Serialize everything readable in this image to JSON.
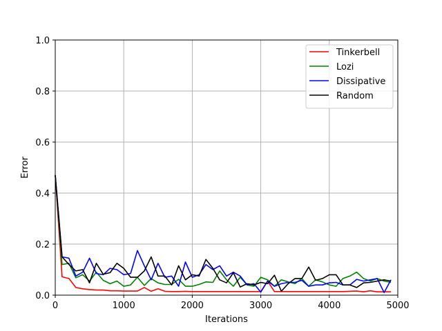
{
  "chart_data": {
    "type": "line",
    "title": "",
    "xlabel": "Iterations",
    "ylabel": "Error",
    "xlim": [
      0,
      5000
    ],
    "ylim": [
      0,
      1.0
    ],
    "xticks": [
      0,
      1000,
      2000,
      3000,
      4000,
      5000
    ],
    "xtick_labels": [
      "0",
      "1000",
      "2000",
      "3000",
      "4000",
      "5000"
    ],
    "yticks": [
      0.0,
      0.2,
      0.4,
      0.6,
      0.8,
      1.0
    ],
    "ytick_labels": [
      "0.0",
      "0.2",
      "0.4",
      "0.6",
      "0.8",
      "1.0"
    ],
    "grid": true,
    "legend_position": "top-right",
    "x": [
      0,
      100,
      200,
      300,
      400,
      500,
      600,
      700,
      800,
      900,
      1000,
      1100,
      1200,
      1300,
      1400,
      1500,
      1600,
      1700,
      1800,
      1900,
      2000,
      2100,
      2200,
      2300,
      2400,
      2500,
      2600,
      2700,
      2800,
      2900,
      3000,
      3100,
      3200,
      3300,
      3400,
      3500,
      3600,
      3700,
      3800,
      3900,
      4000,
      4100,
      4200,
      4300,
      4400,
      4500,
      4600,
      4700,
      4800,
      4900
    ],
    "series": [
      {
        "name": "Tinkerbell",
        "color": "#ff0000",
        "values": [
          0.47,
          0.072,
          0.065,
          0.03,
          0.025,
          0.022,
          0.02,
          0.02,
          0.017,
          0.017,
          0.016,
          0.016,
          0.016,
          0.03,
          0.015,
          0.025,
          0.015,
          0.014,
          0.014,
          0.015,
          0.014,
          0.014,
          0.014,
          0.014,
          0.014,
          0.014,
          0.014,
          0.014,
          0.014,
          0.014,
          0.014,
          0.055,
          0.014,
          0.014,
          0.014,
          0.014,
          0.014,
          0.014,
          0.014,
          0.014,
          0.014,
          0.014,
          0.014,
          0.015,
          0.016,
          0.013,
          0.017,
          0.013,
          0.013,
          0.013
        ]
      },
      {
        "name": "Lozi",
        "color": "#008000",
        "values": [
          0.47,
          0.12,
          0.125,
          0.068,
          0.08,
          0.055,
          0.09,
          0.058,
          0.045,
          0.055,
          0.035,
          0.04,
          0.07,
          0.038,
          0.065,
          0.048,
          0.042,
          0.042,
          0.062,
          0.035,
          0.035,
          0.042,
          0.052,
          0.05,
          0.095,
          0.06,
          0.035,
          0.07,
          0.04,
          0.035,
          0.07,
          0.06,
          0.035,
          0.06,
          0.052,
          0.045,
          0.065,
          0.035,
          0.06,
          0.052,
          0.04,
          0.035,
          0.065,
          0.075,
          0.09,
          0.065,
          0.055,
          0.065,
          0.055,
          0.05
        ]
      },
      {
        "name": "Dissipative",
        "color": "#0000ff",
        "values": [
          0.47,
          0.15,
          0.145,
          0.075,
          0.09,
          0.145,
          0.085,
          0.08,
          0.105,
          0.1,
          0.08,
          0.085,
          0.175,
          0.115,
          0.06,
          0.125,
          0.07,
          0.075,
          0.035,
          0.13,
          0.07,
          0.08,
          0.12,
          0.1,
          0.115,
          0.075,
          0.09,
          0.075,
          0.04,
          0.045,
          0.012,
          0.055,
          0.035,
          0.045,
          0.05,
          0.05,
          0.058,
          0.035,
          0.04,
          0.04,
          0.048,
          0.05,
          0.04,
          0.04,
          0.062,
          0.055,
          0.06,
          0.065,
          0.01,
          0.06
        ]
      },
      {
        "name": "Random",
        "color": "#000000",
        "values": [
          0.47,
          0.15,
          0.12,
          0.095,
          0.1,
          0.048,
          0.125,
          0.082,
          0.088,
          0.125,
          0.105,
          0.07,
          0.07,
          0.095,
          0.15,
          0.075,
          0.075,
          0.04,
          0.115,
          0.06,
          0.08,
          0.075,
          0.14,
          0.105,
          0.06,
          0.048,
          0.088,
          0.032,
          0.045,
          0.04,
          0.05,
          0.045,
          0.078,
          0.015,
          0.045,
          0.065,
          0.065,
          0.11,
          0.058,
          0.065,
          0.08,
          0.08,
          0.04,
          0.04,
          0.03,
          0.048,
          0.05,
          0.055,
          0.06,
          0.055
        ]
      }
    ]
  }
}
